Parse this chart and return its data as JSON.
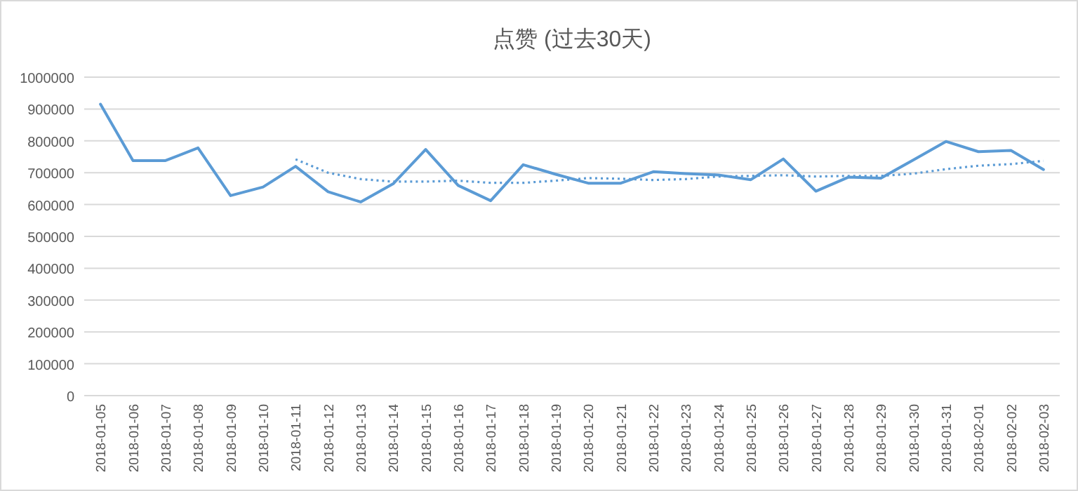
{
  "chart_data": {
    "type": "line",
    "title": "点赞 (过去30天)",
    "categories": [
      "2018-01-05",
      "2018-01-06",
      "2018-01-07",
      "2018-01-08",
      "2018-01-09",
      "2018-01-10",
      "2018-01-11",
      "2018-01-12",
      "2018-01-13",
      "2018-01-14",
      "2018-01-15",
      "2018-01-16",
      "2018-01-17",
      "2018-01-18",
      "2018-01-19",
      "2018-01-20",
      "2018-01-21",
      "2018-01-22",
      "2018-01-23",
      "2018-01-24",
      "2018-01-25",
      "2018-01-26",
      "2018-01-27",
      "2018-01-28",
      "2018-01-29",
      "2018-01-30",
      "2018-01-31",
      "2018-02-01",
      "2018-02-02",
      "2018-02-03"
    ],
    "series": [
      {
        "color": "#5b9bd5",
        "line_style": "solid",
        "values": [
          915000,
          738000,
          738000,
          778000,
          628000,
          655000,
          720000,
          640000,
          608000,
          665000,
          773000,
          660000,
          612000,
          725000,
          695000,
          667000,
          667000,
          703000,
          697000,
          693000,
          678000,
          743000,
          642000,
          686000,
          683000,
          740000,
          798000,
          766000,
          770000,
          710000
        ]
      },
      {
        "color": "#5b9bd5",
        "line_style": "dotted",
        "values": [
          null,
          null,
          null,
          null,
          null,
          null,
          742000,
          700000,
          680000,
          672000,
          672000,
          675000,
          668000,
          668000,
          675000,
          683000,
          681000,
          677000,
          680000,
          688000,
          690000,
          692000,
          688000,
          690000,
          690000,
          697000,
          711000,
          722000,
          727000,
          737000
        ]
      }
    ],
    "ylim": [
      0,
      1000000
    ],
    "yticks": [
      0,
      100000,
      200000,
      300000,
      400000,
      500000,
      600000,
      700000,
      800000,
      900000,
      1000000
    ],
    "grid": "y"
  }
}
